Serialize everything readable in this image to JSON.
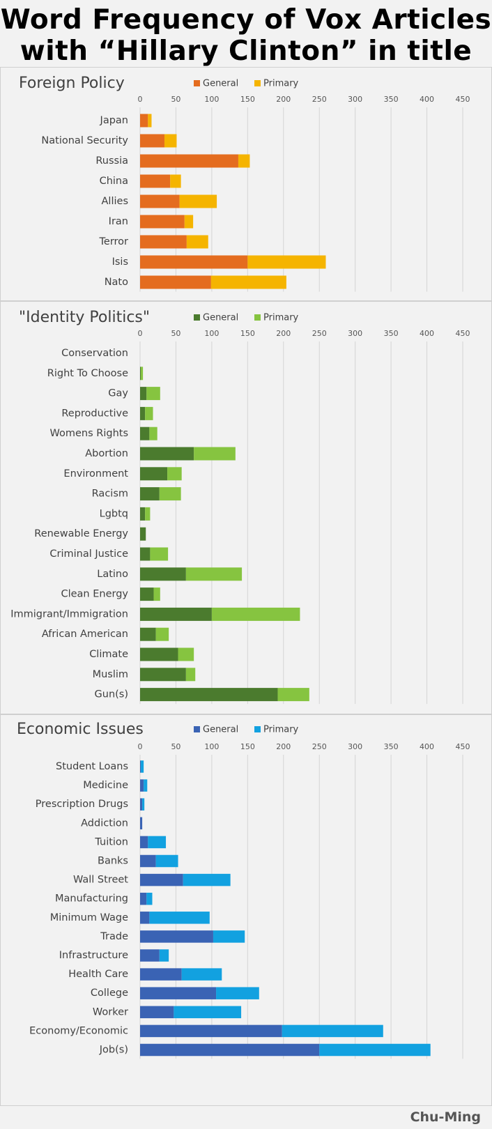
{
  "title": {
    "line1": "Word Frequency of Vox Articles",
    "line2": "with “Hillary Clinton” in title"
  },
  "credit": "Chu-Ming",
  "chart_data": [
    {
      "type": "bar",
      "orientation": "horizontal",
      "stacked": true,
      "title": "Foreign Policy",
      "xlim": [
        0,
        450
      ],
      "ticks": [
        0,
        50,
        100,
        150,
        200,
        250,
        300,
        350,
        400,
        450
      ],
      "grid": true,
      "legend_position": "top",
      "categories": [
        "Japan",
        "National Security",
        "Russia",
        "China",
        "Allies",
        "Iran",
        "Terror",
        "Isis",
        "Nato"
      ],
      "series": [
        {
          "name": "General",
          "color": "#e46c1f",
          "values": [
            11,
            34,
            137,
            42,
            55,
            62,
            65,
            150,
            99
          ]
        },
        {
          "name": "Primary",
          "color": "#f5b400",
          "values": [
            5,
            17,
            16,
            15,
            52,
            12,
            30,
            109,
            105
          ]
        }
      ]
    },
    {
      "type": "bar",
      "orientation": "horizontal",
      "stacked": true,
      "title": "\"Identity Politics\"",
      "xlim": [
        0,
        450
      ],
      "ticks": [
        0,
        50,
        100,
        150,
        200,
        250,
        300,
        350,
        400,
        450
      ],
      "grid": true,
      "legend_position": "top",
      "categories": [
        "Conservation",
        "Right To Choose",
        "Gay",
        "Reproductive",
        "Womens Rights",
        "Abortion",
        "Environment",
        "Racism",
        "Lgbtq",
        "Renewable Energy",
        "Criminal Justice",
        "Latino",
        "Clean Energy",
        "Immigrant/Immigration",
        "African American",
        "Climate",
        "Muslim",
        "Gun(s)"
      ],
      "series": [
        {
          "name": "General",
          "color": "#4b7b2e",
          "values": [
            0,
            1,
            9,
            7,
            13,
            75,
            38,
            27,
            7,
            8,
            14,
            64,
            19,
            100,
            22,
            53,
            64,
            192
          ]
        },
        {
          "name": "Primary",
          "color": "#86c440",
          "values": [
            0,
            3,
            19,
            11,
            11,
            58,
            20,
            30,
            7,
            0,
            25,
            78,
            9,
            123,
            18,
            22,
            13,
            44
          ]
        }
      ]
    },
    {
      "type": "bar",
      "orientation": "horizontal",
      "stacked": true,
      "title": "Economic Issues",
      "xlim": [
        0,
        450
      ],
      "ticks": [
        0,
        50,
        100,
        150,
        200,
        250,
        300,
        350,
        400,
        450
      ],
      "grid": true,
      "legend_position": "top",
      "categories": [
        "Student Loans",
        "Medicine",
        "Prescription Drugs",
        "Addiction",
        "Tuition",
        "Banks",
        "Wall Street",
        "Manufacturing",
        "Minimum Wage",
        "Trade",
        "Infrastructure",
        "Health Care",
        "College",
        "Worker",
        "Economy/Economic",
        "Job(s)"
      ],
      "series": [
        {
          "name": "General",
          "color": "#3a63b4",
          "values": [
            1,
            5,
            3,
            3,
            11,
            22,
            60,
            9,
            13,
            102,
            27,
            58,
            106,
            47,
            198,
            250
          ]
        },
        {
          "name": "Primary",
          "color": "#12a1e0",
          "values": [
            4,
            5,
            3,
            0,
            25,
            31,
            66,
            8,
            84,
            44,
            13,
            56,
            60,
            94,
            141,
            155
          ]
        }
      ]
    }
  ]
}
